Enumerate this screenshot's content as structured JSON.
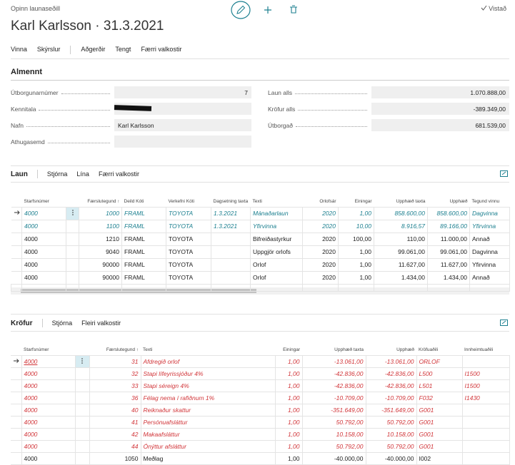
{
  "header": {
    "breadcrumb": "Opinn launaseðill",
    "title": "Karl Karlsson · 31.3.2021",
    "status": "Vistað"
  },
  "actions": [
    "Vinna",
    "Skýrslur",
    "Aðgerðir",
    "Tengt",
    "Færri valkostir"
  ],
  "general": {
    "title": "Almennt",
    "left": [
      {
        "label": "Útborgunarnúmer",
        "value": "7"
      },
      {
        "label": "Kennitala",
        "value": null
      },
      {
        "label": "Nafn",
        "value": "Karl Karlsson"
      },
      {
        "label": "Athugasemd",
        "value": null
      }
    ],
    "right": [
      {
        "label": "Laun alls",
        "value": "1.070.888,00"
      },
      {
        "label": "Kröfur alls",
        "value": "-389.349,00"
      },
      {
        "label": "Útborgað",
        "value": "681.539,00"
      }
    ]
  },
  "lines": {
    "tabs": [
      "Laun",
      "Stjórna",
      "Lína",
      "Færri valkostir"
    ],
    "columns": [
      "Starfsnúmer",
      "Færslutegund ↑",
      "Deild Kóti",
      "Verkefni Kóti",
      "Dagsetning taxta",
      "Texti",
      "Orlofsár",
      "Einingar",
      "Upphæð taxta",
      "Upphæð",
      "Tegund vinnu"
    ],
    "rows": [
      {
        "cells": [
          "4000",
          "1000",
          "FRAML",
          "TOYOTA",
          "1.3.2021",
          "Mánaðarlaun",
          "2020",
          "1,00",
          "858.600,00",
          "858.600,00",
          "Dagvinna"
        ],
        "color": "#1b7f8f",
        "italic": true
      },
      {
        "cells": [
          "4000",
          "1100",
          "FRAML",
          "TOYOTA",
          "1.3.2021",
          "Yfirvinna",
          "2020",
          "10,00",
          "8.916,57",
          "89.166,00",
          "Yfirvinna"
        ],
        "color": "#1b7f8f",
        "italic": true
      },
      {
        "cells": [
          "4000",
          "1210",
          "FRAML",
          "TOYOTA",
          null,
          "Bifreiðastyrkur",
          "2020",
          "100,00",
          "110,00",
          "11.000,00",
          "Annað"
        ],
        "color": "#222222",
        "italic": false
      },
      {
        "cells": [
          "4000",
          "9040",
          "FRAML",
          "TOYOTA",
          null,
          "Uppgjör orlofs",
          "2020",
          "1,00",
          "99.061,00",
          "99.061,00",
          "Dagvinna"
        ],
        "color": "#222222",
        "italic": false
      },
      {
        "cells": [
          "4000",
          "90000",
          "FRAML",
          "TOYOTA",
          null,
          "Orlof",
          "2020",
          "1,00",
          "11.627,00",
          "11.627,00",
          "Yfirvinna"
        ],
        "color": "#222222",
        "italic": false
      },
      {
        "cells": [
          "4000",
          "90000",
          "FRAML",
          "TOYOTA",
          null,
          "Orlof",
          "2020",
          "1,00",
          "1.434,00",
          "1.434,00",
          "Annað"
        ],
        "color": "#222222",
        "italic": false
      }
    ]
  },
  "claims": {
    "tabs": [
      "Kröfur",
      "Stjórna",
      "Fleiri valkostir"
    ],
    "columns": [
      "Starfsnúmer",
      "Færslutegund ↑",
      "Texti",
      "Einingar",
      "Upphæð taxta",
      "Upphæð",
      "Kröfuaðili",
      "Innheimtuaðili"
    ],
    "rows": [
      {
        "cells": [
          "4000",
          "31",
          "Afdregið orlof",
          "1,00",
          "-13.061,00",
          "-13.061,00",
          "ORLOF",
          null
        ],
        "color": "#d13438",
        "italic": true
      },
      {
        "cells": [
          "4000",
          "32",
          "Stapi lífeyrissjóður 4%",
          "1,00",
          "-42.836,00",
          "-42.836,00",
          "L500",
          "I1500"
        ],
        "color": "#d13438",
        "italic": true
      },
      {
        "cells": [
          "4000",
          "33",
          "Stapi séreign 4%",
          "1,00",
          "-42.836,00",
          "-42.836,00",
          "L501",
          "I1500"
        ],
        "color": "#d13438",
        "italic": true
      },
      {
        "cells": [
          "4000",
          "36",
          "Félag nema í rafiðnum 1%",
          "1,00",
          "-10.709,00",
          "-10.709,00",
          "F032",
          "I1430"
        ],
        "color": "#d13438",
        "italic": true
      },
      {
        "cells": [
          "4000",
          "40",
          "Reiknaður skattur",
          "1,00",
          "-351.649,00",
          "-351.649,00",
          "G001",
          null
        ],
        "color": "#d13438",
        "italic": true
      },
      {
        "cells": [
          "4000",
          "41",
          "Persónuafsláttur",
          "1,00",
          "50.792,00",
          "50.792,00",
          "G001",
          null
        ],
        "color": "#d13438",
        "italic": true
      },
      {
        "cells": [
          "4000",
          "42",
          "Makaafsláttur",
          "1,00",
          "10.158,00",
          "10.158,00",
          "G001",
          null
        ],
        "color": "#d13438",
        "italic": true
      },
      {
        "cells": [
          "4000",
          "44",
          "Ónýttur afsláttur",
          "1,00",
          "50.792,00",
          "50.792,00",
          "G001",
          null
        ],
        "color": "#d13438",
        "italic": true
      },
      {
        "cells": [
          "4000",
          "1050",
          "Meðlag",
          "1,00",
          "-40.000,00",
          "-40.000,00",
          "I002",
          null
        ],
        "color": "#222222",
        "italic": false
      }
    ]
  }
}
